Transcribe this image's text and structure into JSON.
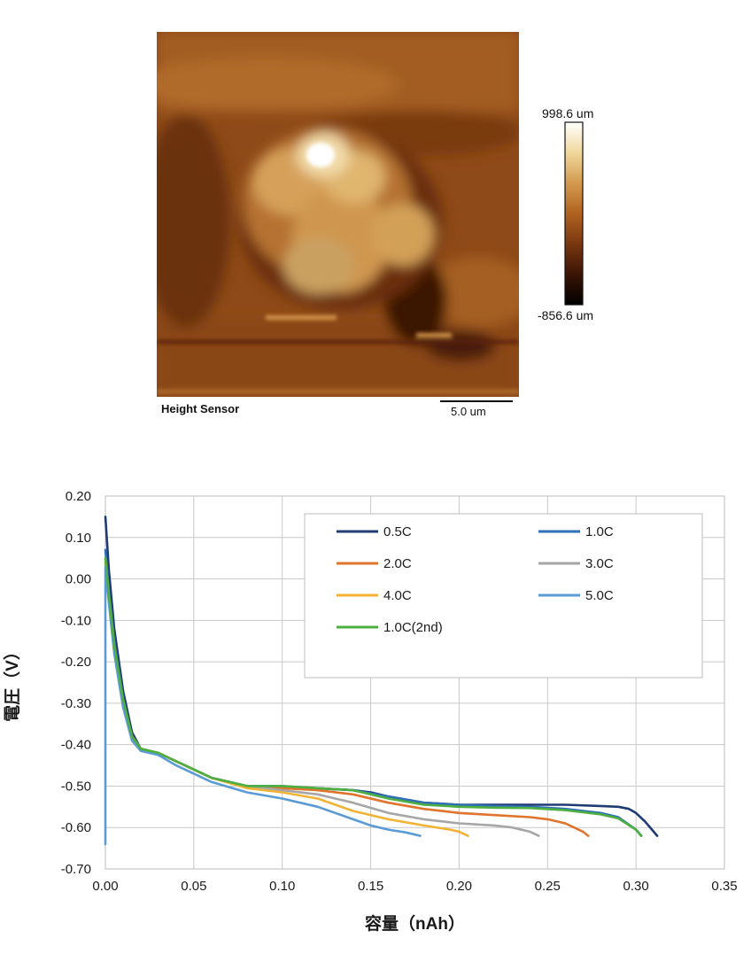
{
  "afm": {
    "height_max": "998.6 um",
    "height_min": "-856.6 um",
    "channel_label": "Height Sensor",
    "scalebar_label": "5.0 um",
    "colormap": [
      "#000000",
      "#3a1405",
      "#7a3710",
      "#b0621f",
      "#d39a4e",
      "#f0d79c",
      "#ffffff"
    ]
  },
  "chart_data": {
    "type": "line",
    "title": "",
    "xlabel": "容量（nAh）",
    "ylabel": "電圧（V）",
    "xlim": [
      0,
      0.35
    ],
    "ylim": [
      -0.7,
      0.2
    ],
    "xticks": [
      "0.00",
      "0.05",
      "0.10",
      "0.15",
      "0.20",
      "0.25",
      "0.30",
      "0.35"
    ],
    "yticks": [
      "0.20",
      "0.10",
      "0.00",
      "-0.10",
      "-0.20",
      "-0.30",
      "-0.40",
      "-0.50",
      "-0.60",
      "-0.70"
    ],
    "grid": true,
    "legend_position": "top-right",
    "series": [
      {
        "name": "0.5C",
        "color": "#1f3b73",
        "x": [
          0.0,
          0.002,
          0.005,
          0.01,
          0.015,
          0.02,
          0.03,
          0.04,
          0.05,
          0.06,
          0.08,
          0.1,
          0.12,
          0.14,
          0.15,
          0.16,
          0.18,
          0.2,
          0.22,
          0.24,
          0.26,
          0.28,
          0.29,
          0.296,
          0.3,
          0.305,
          0.31,
          0.312
        ],
        "y": [
          0.15,
          0.02,
          -0.12,
          -0.27,
          -0.37,
          -0.41,
          -0.42,
          -0.44,
          -0.46,
          -0.48,
          -0.5,
          -0.505,
          -0.505,
          -0.51,
          -0.515,
          -0.525,
          -0.54,
          -0.545,
          -0.545,
          -0.545,
          -0.545,
          -0.548,
          -0.55,
          -0.555,
          -0.565,
          -0.585,
          -0.61,
          -0.62
        ]
      },
      {
        "name": "1.0C",
        "color": "#2e6fb7",
        "x": [
          0.0,
          0.002,
          0.005,
          0.01,
          0.015,
          0.02,
          0.03,
          0.04,
          0.05,
          0.06,
          0.08,
          0.1,
          0.12,
          0.14,
          0.16,
          0.18,
          0.2,
          0.22,
          0.24,
          0.26,
          0.28,
          0.29,
          0.3,
          0.303
        ],
        "y": [
          0.07,
          -0.03,
          -0.15,
          -0.29,
          -0.38,
          -0.41,
          -0.42,
          -0.44,
          -0.46,
          -0.48,
          -0.5,
          -0.5,
          -0.505,
          -0.51,
          -0.525,
          -0.54,
          -0.545,
          -0.548,
          -0.55,
          -0.555,
          -0.565,
          -0.575,
          -0.605,
          -0.62
        ]
      },
      {
        "name": "2.0C",
        "color": "#e0742c",
        "x": [
          0.0,
          0.002,
          0.005,
          0.01,
          0.015,
          0.02,
          0.03,
          0.04,
          0.05,
          0.06,
          0.08,
          0.1,
          0.12,
          0.14,
          0.16,
          0.18,
          0.2,
          0.22,
          0.24,
          0.25,
          0.26,
          0.265,
          0.27,
          0.273
        ],
        "y": [
          0.05,
          -0.04,
          -0.16,
          -0.3,
          -0.38,
          -0.41,
          -0.42,
          -0.44,
          -0.46,
          -0.48,
          -0.5,
          -0.505,
          -0.51,
          -0.52,
          -0.54,
          -0.555,
          -0.565,
          -0.57,
          -0.575,
          -0.58,
          -0.59,
          -0.6,
          -0.61,
          -0.62
        ]
      },
      {
        "name": "3.0C",
        "color": "#a6a6a6",
        "x": [
          0.0,
          0.002,
          0.005,
          0.01,
          0.015,
          0.02,
          0.03,
          0.04,
          0.05,
          0.06,
          0.08,
          0.1,
          0.12,
          0.14,
          0.16,
          0.18,
          0.2,
          0.22,
          0.23,
          0.24,
          0.245
        ],
        "y": [
          0.04,
          -0.05,
          -0.17,
          -0.3,
          -0.38,
          -0.41,
          -0.42,
          -0.44,
          -0.46,
          -0.48,
          -0.5,
          -0.51,
          -0.52,
          -0.54,
          -0.565,
          -0.58,
          -0.59,
          -0.595,
          -0.6,
          -0.61,
          -0.62
        ]
      },
      {
        "name": "4.0C",
        "color": "#f2b233",
        "x": [
          0.0,
          0.002,
          0.005,
          0.01,
          0.015,
          0.02,
          0.03,
          0.04,
          0.05,
          0.06,
          0.08,
          0.1,
          0.12,
          0.14,
          0.16,
          0.18,
          0.195,
          0.2,
          0.205
        ],
        "y": [
          0.04,
          -0.05,
          -0.17,
          -0.31,
          -0.38,
          -0.41,
          -0.42,
          -0.44,
          -0.46,
          -0.48,
          -0.505,
          -0.515,
          -0.53,
          -0.56,
          -0.58,
          -0.595,
          -0.605,
          -0.61,
          -0.62
        ]
      },
      {
        "name": "5.0C",
        "color": "#5b9bd5",
        "x": [
          0.0,
          0.0,
          0.002,
          0.005,
          0.01,
          0.015,
          0.02,
          0.03,
          0.04,
          0.05,
          0.06,
          0.08,
          0.1,
          0.12,
          0.14,
          0.15,
          0.16,
          0.17,
          0.178
        ],
        "y": [
          -0.64,
          0.03,
          -0.06,
          -0.18,
          -0.31,
          -0.39,
          -0.415,
          -0.425,
          -0.45,
          -0.47,
          -0.49,
          -0.515,
          -0.53,
          -0.55,
          -0.58,
          -0.595,
          -0.605,
          -0.612,
          -0.62
        ]
      },
      {
        "name": "1.0C(2nd)",
        "color": "#4caf3f",
        "x": [
          0.0,
          0.002,
          0.005,
          0.01,
          0.015,
          0.02,
          0.03,
          0.04,
          0.05,
          0.06,
          0.08,
          0.1,
          0.12,
          0.14,
          0.16,
          0.18,
          0.2,
          0.22,
          0.24,
          0.26,
          0.28,
          0.29,
          0.3,
          0.303
        ],
        "y": [
          0.05,
          -0.04,
          -0.16,
          -0.29,
          -0.38,
          -0.41,
          -0.42,
          -0.44,
          -0.46,
          -0.48,
          -0.5,
          -0.5,
          -0.505,
          -0.51,
          -0.53,
          -0.545,
          -0.55,
          -0.552,
          -0.553,
          -0.558,
          -0.568,
          -0.578,
          -0.605,
          -0.62
        ]
      }
    ]
  }
}
